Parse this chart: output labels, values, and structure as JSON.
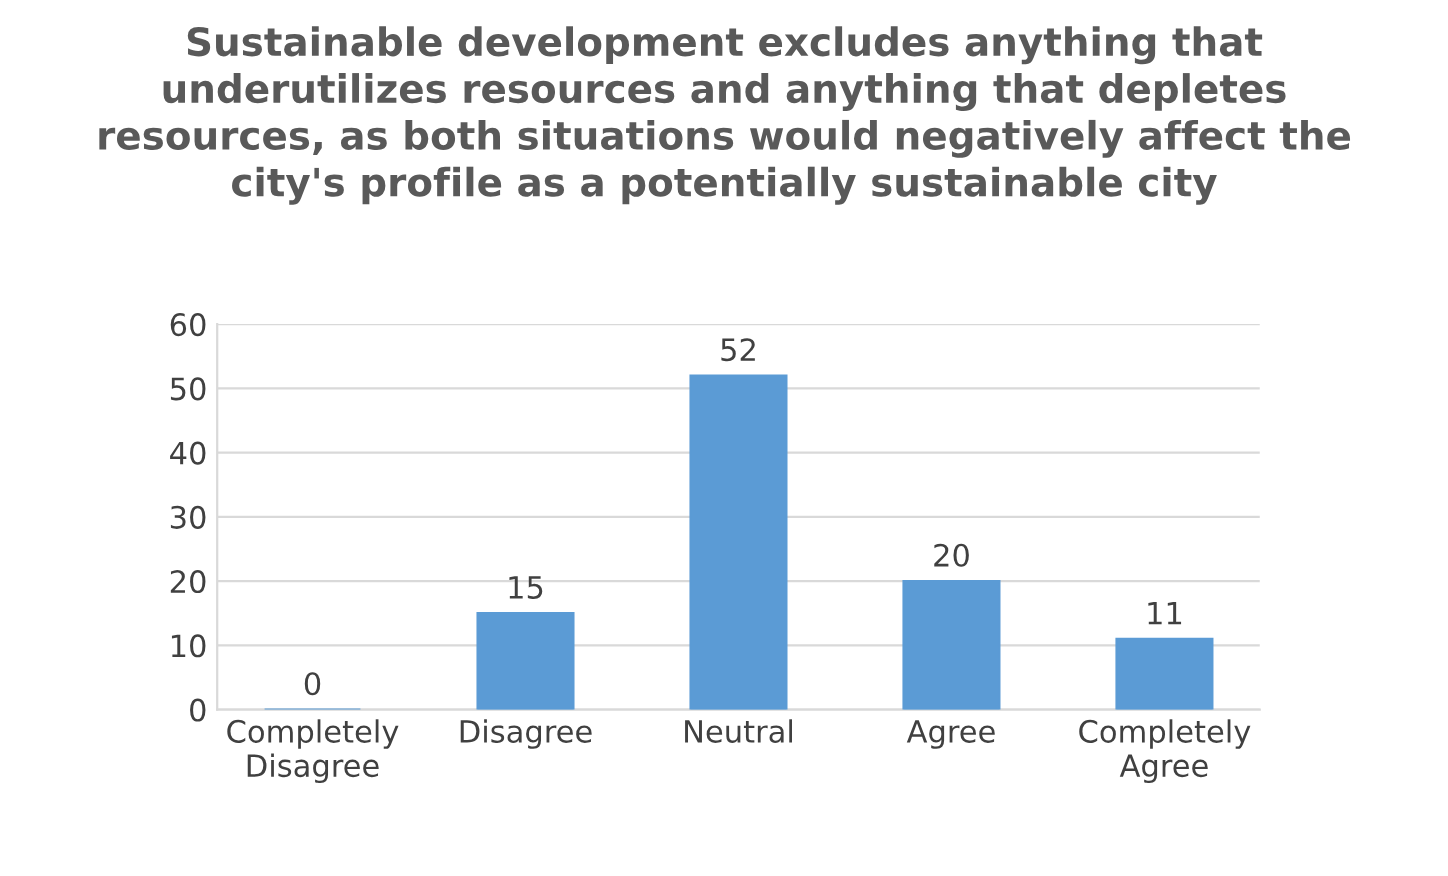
{
  "chart_data": {
    "type": "bar",
    "title": "Sustainable development excludes anything that\nunderutilizes resources and anything that depletes\nresources, as both situations would negatively affect the\ncity's profile as a potentially sustainable city",
    "categories": [
      "Completely\nDisagree",
      "Disagree",
      "Neutral",
      "Agree",
      "Completely\nAgree"
    ],
    "values": [
      0,
      15,
      52,
      20,
      11
    ],
    "color": "#5b9bd5",
    "ylim": [
      0,
      60
    ],
    "yticks": [
      0,
      10,
      20,
      30,
      40,
      50,
      60
    ],
    "grid": "y",
    "data_labels": true,
    "legend": false
  }
}
